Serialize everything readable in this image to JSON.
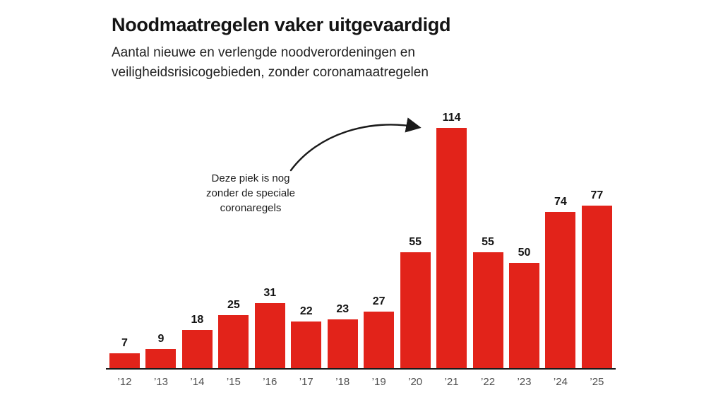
{
  "header": {
    "title": "Noodmaatregelen vaker uitgevaardigd",
    "subtitle_line1": "Aantal nieuwe en verlengde noodverordeningen en",
    "subtitle_line2": "veiligheidsrisicogebieden, zonder coronamaatregelen"
  },
  "annotation": {
    "line1": "Deze piek is nog",
    "line2": "zonder de speciale",
    "line3": "coronaregels"
  },
  "colors": {
    "bar": "#e2231a",
    "title_text": "#141414",
    "axis_label": "#4f4f4f",
    "baseline": "#1a1a1a",
    "arrow": "#1a1a1a"
  },
  "chart_data": {
    "type": "bar",
    "categories": [
      "’12",
      "’13",
      "’14",
      "’15",
      "’16",
      "’17",
      "’18",
      "’19",
      "’20",
      "’21",
      "’22",
      "’23",
      "’24",
      "’25"
    ],
    "values": [
      7,
      9,
      18,
      25,
      31,
      22,
      23,
      27,
      55,
      114,
      55,
      50,
      74,
      77
    ],
    "title": "Noodmaatregelen vaker uitgevaardigd",
    "subtitle": "Aantal nieuwe en verlengde noodverordeningen en veiligheidsrisicogebieden, zonder coronamaatregelen",
    "xlabel": "",
    "ylabel": "",
    "ylim": [
      0,
      120
    ],
    "grid": false,
    "legend": false,
    "bar_color": "#e2231a",
    "value_labels": true,
    "annotation": "Deze piek is nog zonder de speciale coronaregels (points at 2021 bar, value 114)"
  }
}
